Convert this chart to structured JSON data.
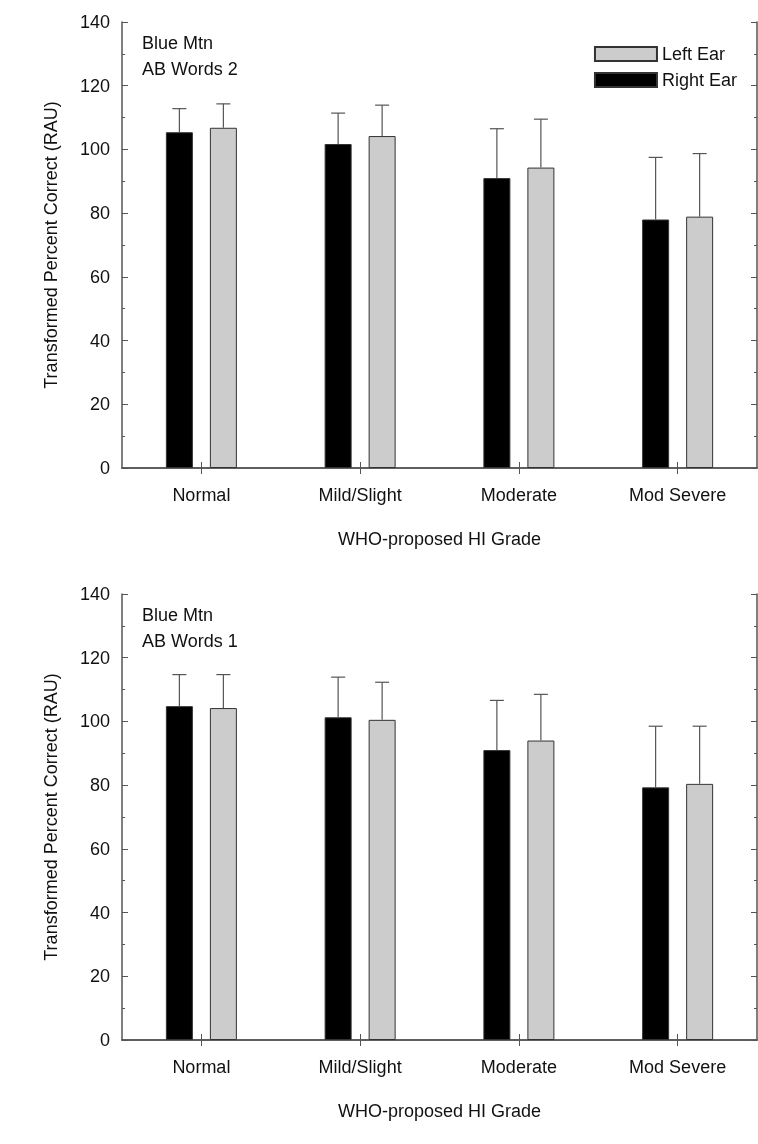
{
  "chart_data": [
    {
      "type": "bar",
      "xlabel": "WHO-proposed HI Grade",
      "ylabel": "Transformed Percent Correct (RAU)",
      "annotations": [
        "Blue Mtn",
        "AB Words 2"
      ],
      "categories": [
        "Normal",
        "Mild/Slight",
        "Moderate",
        "Mod Severe"
      ],
      "ylim": [
        0,
        140
      ],
      "yticks": [
        0,
        20,
        40,
        60,
        80,
        100,
        120,
        140
      ],
      "grid": false,
      "legend": "top right",
      "series": [
        {
          "name": "Right Ear",
          "color": "#000000",
          "values": [
            105.4,
            101.7,
            91.0,
            78.0
          ],
          "errors": [
            [
              105.4,
              112.8
            ],
            [
              101.7,
              111.4
            ],
            [
              91.0,
              106.5
            ],
            [
              78.0,
              97.5
            ]
          ]
        },
        {
          "name": "Left Ear",
          "color": "#cccccc",
          "values": [
            106.8,
            104.2,
            94.3,
            78.9
          ],
          "errors": [
            [
              106.8,
              114.3
            ],
            [
              104.2,
              113.9
            ],
            [
              94.3,
              109.5
            ],
            [
              78.9,
              98.7
            ]
          ]
        }
      ]
    },
    {
      "type": "bar",
      "xlabel": "WHO-proposed HI Grade",
      "ylabel": "Transformed Percent Correct (RAU)",
      "annotations": [
        "Blue Mtn",
        "AB Words 1"
      ],
      "categories": [
        "Normal",
        "Mild/Slight",
        "Moderate",
        "Mod Severe"
      ],
      "ylim": [
        0,
        140
      ],
      "yticks": [
        0,
        20,
        40,
        60,
        80,
        100,
        120,
        140
      ],
      "grid": false,
      "legend": false,
      "series": [
        {
          "color": "#000000",
          "values": [
            104.8,
            101.3,
            91.0,
            79.3
          ],
          "errors": [
            [
              104.8,
              114.7
            ],
            [
              101.3,
              113.9
            ],
            [
              91.0,
              106.6
            ],
            [
              79.3,
              98.5
            ]
          ]
        },
        {
          "color": "#cccccc",
          "values": [
            104.2,
            100.5,
            94.0,
            80.4
          ],
          "errors": [
            [
              104.2,
              114.7
            ],
            [
              100.5,
              112.3
            ],
            [
              94.0,
              108.5
            ],
            [
              80.4,
              98.5
            ]
          ]
        }
      ]
    }
  ]
}
